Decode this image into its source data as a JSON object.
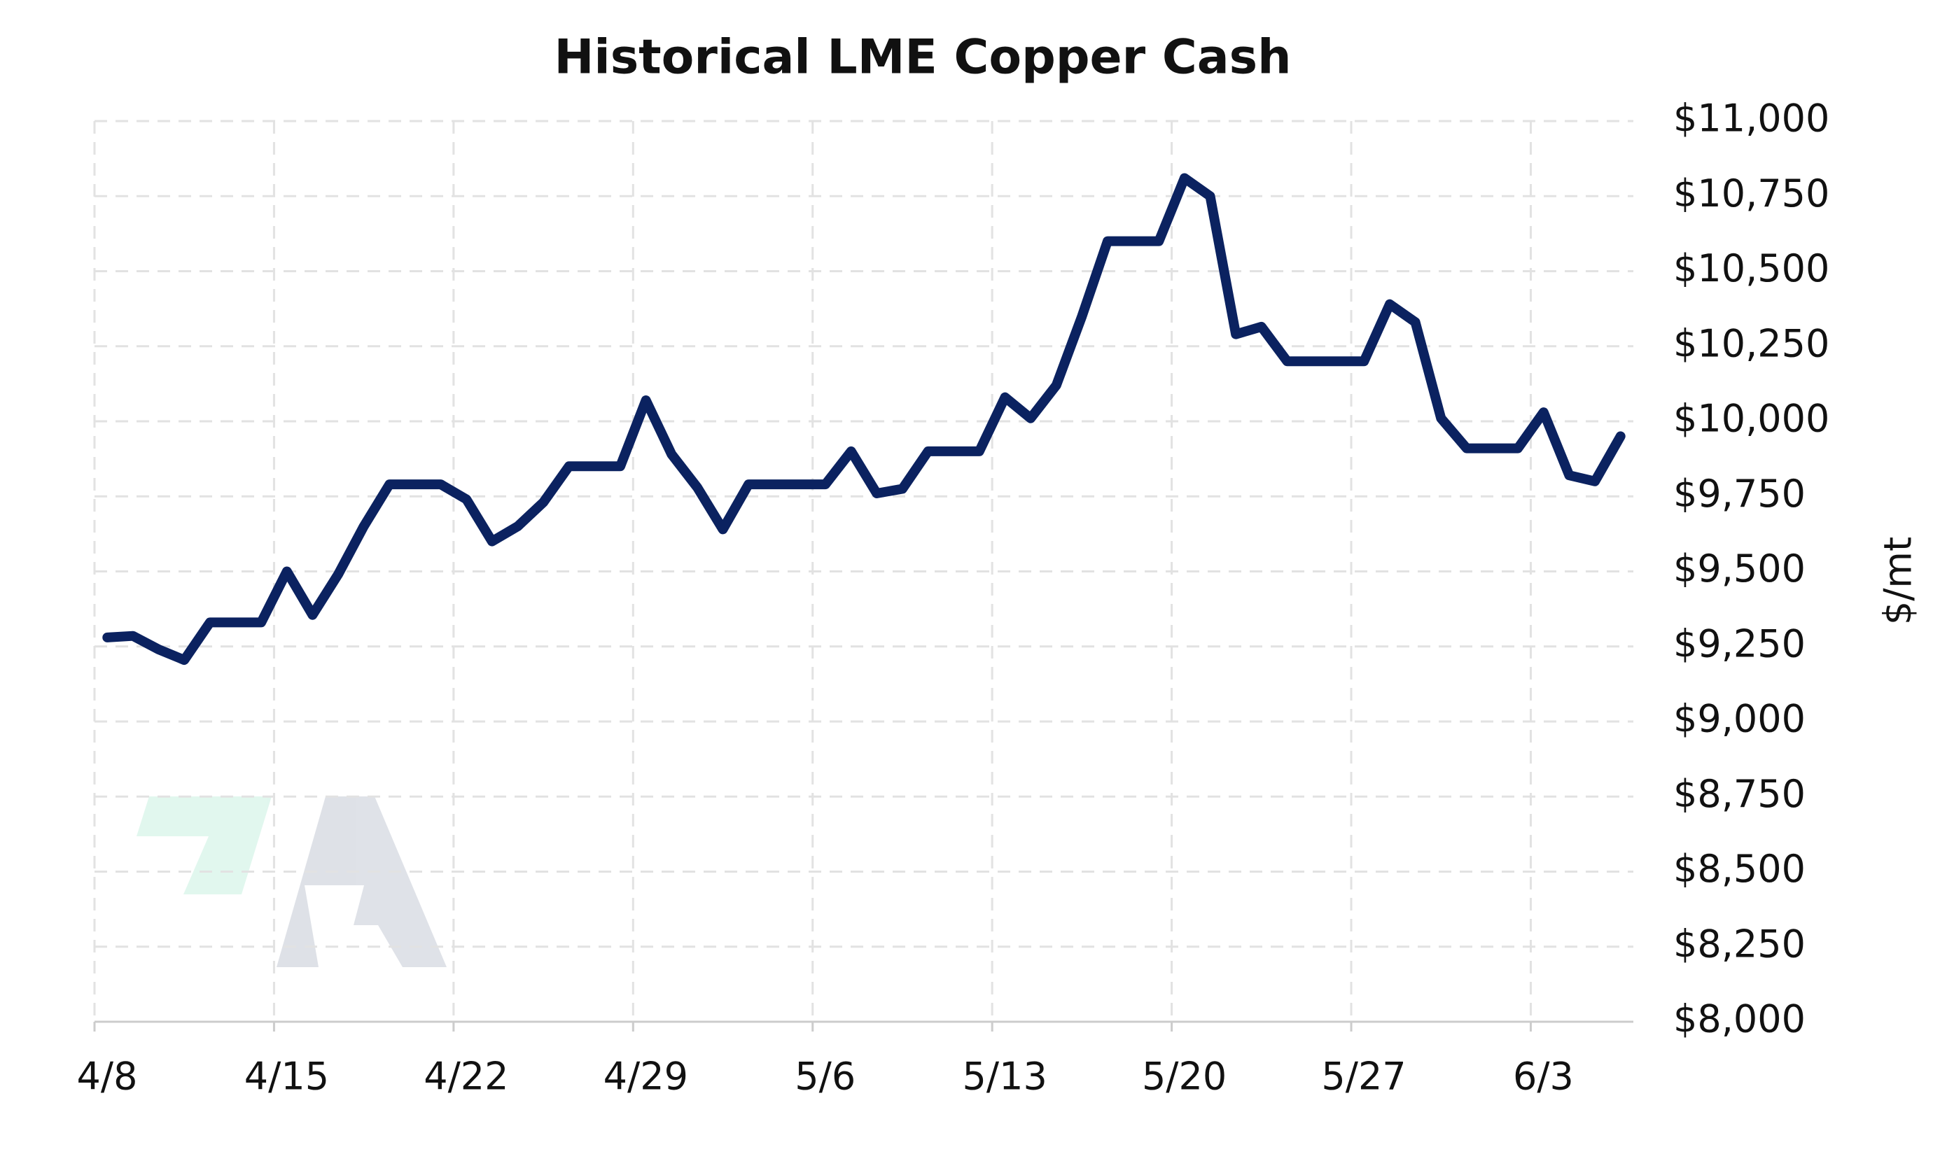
{
  "chart_data": {
    "type": "line",
    "title": "Historical LME Copper Cash",
    "y_label": "$/mt",
    "x": [
      "4/8",
      "4/9",
      "4/10",
      "4/11",
      "4/12",
      "4/13",
      "4/14",
      "4/15",
      "4/16",
      "4/17",
      "4/18",
      "4/19",
      "4/20",
      "4/21",
      "4/22",
      "4/23",
      "4/24",
      "4/25",
      "4/26",
      "4/27",
      "4/28",
      "4/29",
      "4/30",
      "5/1",
      "5/2",
      "5/3",
      "5/4",
      "5/5",
      "5/6",
      "5/7",
      "5/8",
      "5/9",
      "5/10",
      "5/11",
      "5/12",
      "5/13",
      "5/14",
      "5/15",
      "5/16",
      "5/17",
      "5/18",
      "5/19",
      "5/20",
      "5/21",
      "5/22",
      "5/23",
      "5/24",
      "5/25",
      "5/26",
      "5/27",
      "5/28",
      "5/29",
      "5/30",
      "5/31",
      "6/1",
      "6/2",
      "6/3",
      "6/4",
      "6/5",
      "6/6"
    ],
    "series": [
      {
        "name": "LME Copper Cash",
        "color": "#0b2260",
        "values": [
          9280,
          9285,
          9240,
          9205,
          9330,
          9330,
          9330,
          9500,
          9355,
          9490,
          9650,
          9790,
          9790,
          9790,
          9740,
          9600,
          9650,
          9730,
          9850,
          9850,
          9850,
          10070,
          9890,
          9780,
          9640,
          9790,
          9790,
          9790,
          9790,
          9900,
          9760,
          9775,
          9900,
          9900,
          9900,
          10080,
          10010,
          10120,
          10350,
          10600,
          10600,
          10600,
          10810,
          10750,
          10290,
          10315,
          10200,
          10200,
          10200,
          10200,
          10390,
          10330,
          10010,
          9910,
          9910,
          9910,
          10030,
          9820,
          9800,
          9950
        ]
      }
    ],
    "xticks": [
      "4/8",
      "4/15",
      "4/22",
      "4/29",
      "5/6",
      "5/13",
      "5/20",
      "5/27",
      "6/3"
    ],
    "ylim": [
      8000,
      11000
    ],
    "yticks": [
      {
        "value": 8000,
        "label": "$8,000"
      },
      {
        "value": 8250,
        "label": "$8,250"
      },
      {
        "value": 8500,
        "label": "$8,500"
      },
      {
        "value": 8750,
        "label": "$8,750"
      },
      {
        "value": 9000,
        "label": "$9,000"
      },
      {
        "value": 9250,
        "label": "$9,250"
      },
      {
        "value": 9500,
        "label": "$9,500"
      },
      {
        "value": 9750,
        "label": "$9,750"
      },
      {
        "value": 10000,
        "label": "$10,000"
      },
      {
        "value": 10250,
        "label": "$10,250"
      },
      {
        "value": 10500,
        "label": "$10,500"
      },
      {
        "value": 10750,
        "label": "$10,750"
      },
      {
        "value": 11000,
        "label": "$11,000"
      }
    ],
    "grid": true,
    "y_axis_side": "right"
  }
}
